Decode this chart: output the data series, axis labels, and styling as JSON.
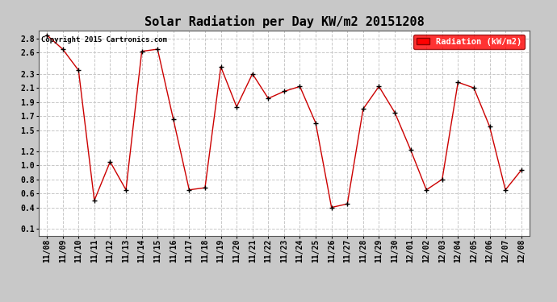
{
  "title": "Solar Radiation per Day KW/m2 20151208",
  "legend_label": "Radiation (kW/m2)",
  "copyright": "Copyright 2015 Cartronics.com",
  "dates": [
    "11/08",
    "11/09",
    "11/10",
    "11/11",
    "11/12",
    "11/13",
    "11/14",
    "11/15",
    "11/16",
    "11/17",
    "11/18",
    "11/19",
    "11/20",
    "11/21",
    "11/22",
    "11/23",
    "11/24",
    "11/25",
    "11/26",
    "11/27",
    "11/28",
    "11/29",
    "11/30",
    "12/01",
    "12/02",
    "12/03",
    "12/04",
    "12/05",
    "12/06",
    "12/07",
    "12/08"
  ],
  "values": [
    2.85,
    2.65,
    2.35,
    0.5,
    1.05,
    0.65,
    2.62,
    2.65,
    1.65,
    0.65,
    0.68,
    2.4,
    1.83,
    2.3,
    1.95,
    2.05,
    2.12,
    1.6,
    0.4,
    0.45,
    1.8,
    2.12,
    1.75,
    1.22,
    0.65,
    0.8,
    2.18,
    2.1,
    1.55,
    0.65,
    0.93
  ],
  "line_color": "#cc0000",
  "marker": "+",
  "marker_color": "#000000",
  "plot_bg_color": "#ffffff",
  "fig_bg_color": "#c8c8c8",
  "grid_color": "#c8c8c8",
  "ylim": [
    0.0,
    2.92
  ],
  "yticks": [
    0.1,
    0.4,
    0.6,
    0.8,
    1.0,
    1.2,
    1.5,
    1.7,
    1.9,
    2.1,
    2.3,
    2.6,
    2.8
  ],
  "title_fontsize": 11,
  "tick_fontsize": 7,
  "legend_fontsize": 7.5,
  "copyright_fontsize": 6.5
}
